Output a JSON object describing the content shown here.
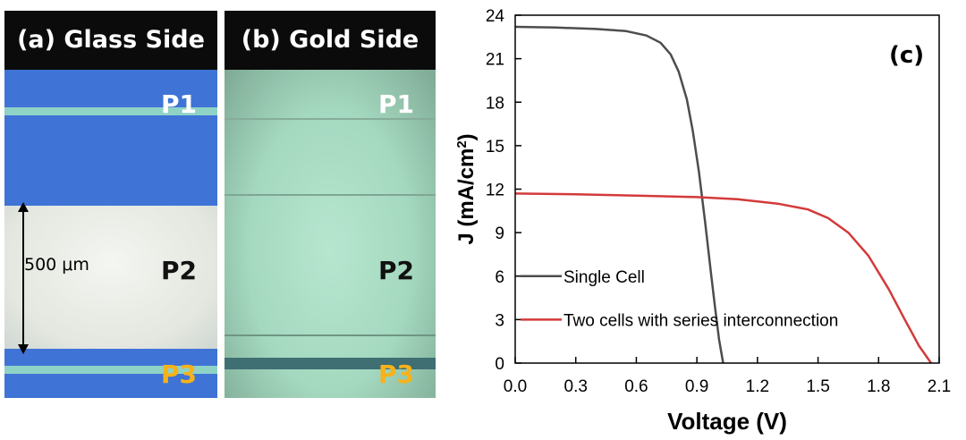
{
  "panel_a": {
    "title": "(a) Glass Side",
    "labels": {
      "p1": "P1",
      "p2": "P2",
      "p3": "P3"
    },
    "scale_label": "500 μm"
  },
  "panel_b": {
    "title": "(b) Gold Side",
    "labels": {
      "p1": "P1",
      "p2": "P2",
      "p3": "P3"
    }
  },
  "colors": {
    "glass_blue": "#3f73d6",
    "glass_white": "#e8ece6",
    "scribe_teal": "#8fd3c6",
    "gold_green": "#a9ddc4",
    "p3_orange": "#f7b21a",
    "single_cell": "#4d4d4d",
    "two_cells": "#d43a3a"
  },
  "chart_data": {
    "type": "line",
    "panel_label": "(c)",
    "xlabel": "Voltage (V)",
    "ylabel": "J (mA/cm",
    "ylabel_sup": "2",
    "ylabel_end": ")",
    "xlim": [
      0,
      2.1
    ],
    "ylim": [
      0,
      24
    ],
    "xticks": [
      "0.0",
      "0.3",
      "0.6",
      "0.9",
      "1.2",
      "1.5",
      "1.8",
      "2.1"
    ],
    "yticks": [
      "0",
      "3",
      "6",
      "9",
      "12",
      "15",
      "18",
      "21",
      "24"
    ],
    "legend_position": "lower-left",
    "series": [
      {
        "name": "Single Cell",
        "color": "#4d4d4d",
        "x": [
          0,
          0.2,
          0.4,
          0.55,
          0.65,
          0.72,
          0.77,
          0.81,
          0.85,
          0.88,
          0.91,
          0.94,
          0.97,
          0.99,
          1.01,
          1.03
        ],
        "y": [
          23.2,
          23.15,
          23.05,
          22.9,
          22.6,
          22.1,
          21.3,
          20.1,
          18.2,
          16.0,
          13.2,
          9.8,
          6.2,
          3.8,
          1.6,
          0
        ]
      },
      {
        "name": "Two cells with series interconnection",
        "color": "#d43a3a",
        "x": [
          0,
          0.3,
          0.6,
          0.9,
          1.1,
          1.3,
          1.45,
          1.55,
          1.65,
          1.75,
          1.85,
          1.93,
          2.0,
          2.06
        ],
        "y": [
          11.7,
          11.65,
          11.55,
          11.45,
          11.3,
          11.0,
          10.6,
          10.0,
          9.0,
          7.4,
          5.1,
          3.0,
          1.2,
          0
        ]
      }
    ]
  }
}
